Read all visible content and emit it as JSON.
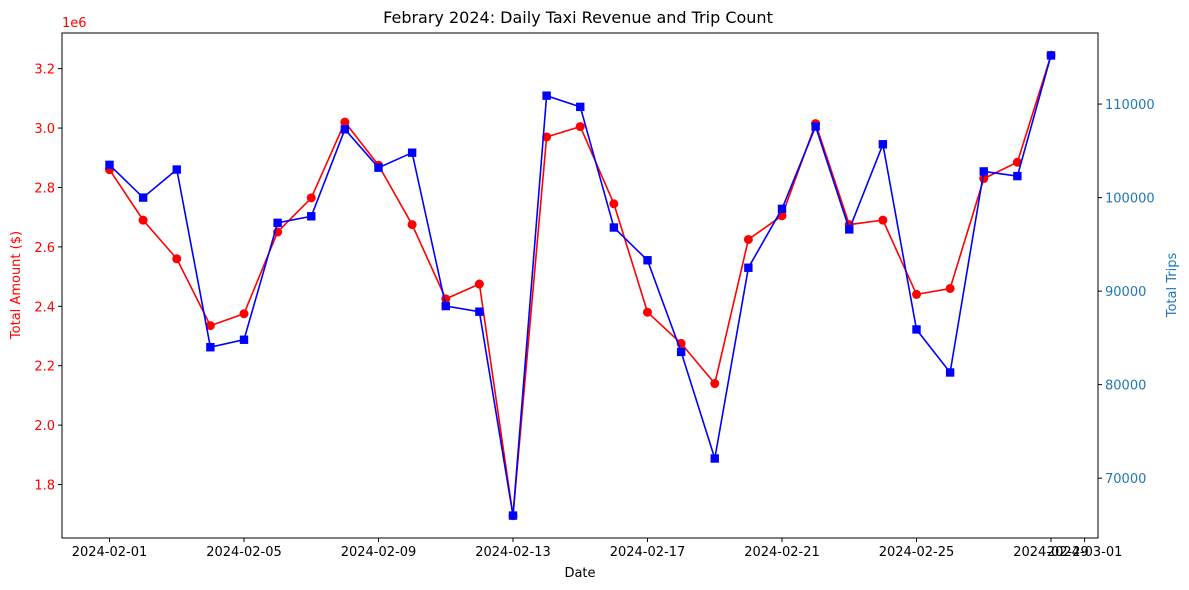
{
  "chart_data": {
    "type": "line",
    "title": "Febrary 2024: Daily Taxi Revenue and Trip Count",
    "xlabel": "Date",
    "ylabel_left": "Total Amount ($)",
    "ylabel_right": "Total Trips",
    "left_scale_label": "1e6",
    "left_color": "#ff0000",
    "right_color": "#0000ff",
    "right_label_color": "#1f77b4",
    "x": [
      "2024-02-01",
      "2024-02-02",
      "2024-02-03",
      "2024-02-04",
      "2024-02-05",
      "2024-02-06",
      "2024-02-07",
      "2024-02-08",
      "2024-02-09",
      "2024-02-10",
      "2024-02-11",
      "2024-02-12",
      "2024-02-13",
      "2024-02-14",
      "2024-02-15",
      "2024-02-16",
      "2024-02-17",
      "2024-02-18",
      "2024-02-19",
      "2024-02-20",
      "2024-02-21",
      "2024-02-22",
      "2024-02-23",
      "2024-02-24",
      "2024-02-25",
      "2024-02-26",
      "2024-02-27",
      "2024-02-28",
      "2024-02-29"
    ],
    "x_ticks": [
      "2024-02-01",
      "2024-02-05",
      "2024-02-09",
      "2024-02-13",
      "2024-02-17",
      "2024-02-21",
      "2024-02-25",
      "2024-02-29",
      "2024-03-01"
    ],
    "series": [
      {
        "name": "Total Amount ($)",
        "axis": "left",
        "marker": "circle",
        "values": [
          2.86,
          2.69,
          2.56,
          2.335,
          2.375,
          2.65,
          2.765,
          3.02,
          2.875,
          2.675,
          2.425,
          2.475,
          1.695,
          2.97,
          3.005,
          2.745,
          2.38,
          2.275,
          2.14,
          2.625,
          2.705,
          3.015,
          2.675,
          2.69,
          2.44,
          2.46,
          2.83,
          2.885,
          3.245
        ]
      },
      {
        "name": "Total Trips",
        "axis": "right",
        "marker": "square",
        "values": [
          103500,
          100000,
          103000,
          84000,
          84800,
          97300,
          98000,
          107300,
          103200,
          104800,
          88400,
          87800,
          66000,
          110900,
          109700,
          96800,
          93300,
          83500,
          72100,
          92500,
          98800,
          107600,
          96600,
          105700,
          85900,
          81300,
          102800,
          102300,
          115200
        ]
      }
    ],
    "ylim_left": [
      1.62,
      3.32
    ],
    "yticks_left": [
      "1.8",
      "2.0",
      "2.2",
      "2.4",
      "2.6",
      "2.8",
      "3.0",
      "3.2"
    ],
    "ylim_right": [
      63600,
      117600
    ],
    "yticks_right": [
      "70000",
      "80000",
      "90000",
      "100000",
      "110000"
    ]
  }
}
